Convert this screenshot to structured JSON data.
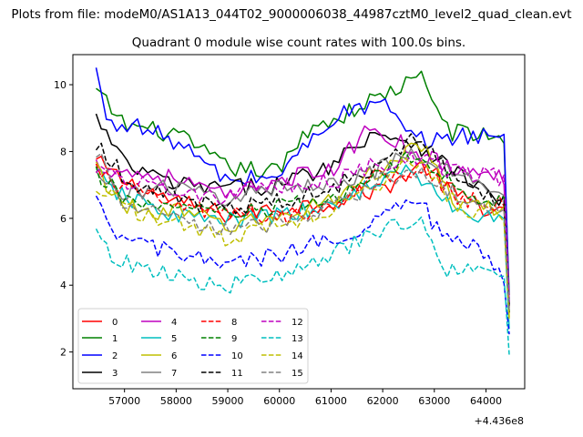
{
  "figure": {
    "suptitle": "Plots from file: modeM0/AS1A13_044T02_9000006038_44987cztM0_level2_quad_clean.evt",
    "title": "Quadrant 0 module wise count rates with 100.0s bins.",
    "offset_label": "+4.436e8"
  },
  "chart_data": {
    "type": "line",
    "x_offset": 443600000,
    "x_start": 56450,
    "x_step": 100,
    "xlim": [
      56000,
      64750
    ],
    "ylim": [
      0.9,
      10.9
    ],
    "xticks": [
      57000,
      58000,
      59000,
      60000,
      61000,
      62000,
      63000,
      64000
    ],
    "xtick_labels": [
      "57000",
      "58000",
      "59000",
      "60000",
      "61000",
      "62000",
      "63000",
      "64000"
    ],
    "yticks": [
      2,
      4,
      6,
      8,
      10
    ],
    "ytick_labels": [
      "2",
      "4",
      "6",
      "8",
      "10"
    ],
    "grid": false,
    "legend": {
      "placement": "lower-left",
      "ncol": 4
    },
    "series": [
      {
        "name": "0",
        "color": "#ff0000",
        "dash": "solid",
        "anchors": [
          [
            56450,
            7.7
          ],
          [
            57000,
            7.1
          ],
          [
            58000,
            6.5
          ],
          [
            59000,
            6.1
          ],
          [
            60000,
            6.3
          ],
          [
            61000,
            6.5
          ],
          [
            62000,
            6.9
          ],
          [
            62800,
            7.6
          ],
          [
            63500,
            6.6
          ],
          [
            64350,
            6.1
          ],
          [
            64480,
            2.5
          ]
        ]
      },
      {
        "name": "1",
        "color": "#008000",
        "dash": "solid",
        "anchors": [
          [
            56450,
            9.8
          ],
          [
            57000,
            8.8
          ],
          [
            58000,
            8.5
          ],
          [
            59000,
            7.5
          ],
          [
            60000,
            7.4
          ],
          [
            60600,
            8.8
          ],
          [
            61000,
            8.9
          ],
          [
            62000,
            9.7
          ],
          [
            62750,
            10.2
          ],
          [
            63300,
            8.6
          ],
          [
            64350,
            8.4
          ],
          [
            64480,
            2.3
          ]
        ]
      },
      {
        "name": "2",
        "color": "#0000ff",
        "dash": "solid",
        "anchors": [
          [
            56450,
            10.4
          ],
          [
            56700,
            8.7
          ],
          [
            57000,
            8.9
          ],
          [
            58000,
            8.3
          ],
          [
            59000,
            7.1
          ],
          [
            60000,
            7.3
          ],
          [
            61000,
            9.0
          ],
          [
            62000,
            9.5
          ],
          [
            62500,
            8.4
          ],
          [
            63100,
            8.3
          ],
          [
            63500,
            8.5
          ],
          [
            64350,
            8.5
          ],
          [
            64480,
            2.0
          ]
        ]
      },
      {
        "name": "3",
        "color": "#000000",
        "dash": "solid",
        "anchors": [
          [
            56450,
            9.0
          ],
          [
            57000,
            7.6
          ],
          [
            58000,
            7.0
          ],
          [
            59000,
            6.9
          ],
          [
            60000,
            7.0
          ],
          [
            61000,
            7.6
          ],
          [
            61800,
            8.6
          ],
          [
            62600,
            8.3
          ],
          [
            63500,
            7.3
          ],
          [
            64350,
            6.5
          ],
          [
            64480,
            2.2
          ]
        ]
      },
      {
        "name": "4",
        "color": "#bf00bf",
        "dash": "solid",
        "anchors": [
          [
            56450,
            7.6
          ],
          [
            57000,
            7.4
          ],
          [
            58000,
            7.2
          ],
          [
            59000,
            6.6
          ],
          [
            60000,
            7.2
          ],
          [
            61000,
            7.4
          ],
          [
            61800,
            8.8
          ],
          [
            62600,
            8.0
          ],
          [
            63500,
            7.4
          ],
          [
            64350,
            7.2
          ],
          [
            64480,
            2.3
          ]
        ]
      },
      {
        "name": "5",
        "color": "#00bfbf",
        "dash": "solid",
        "anchors": [
          [
            56450,
            7.3
          ],
          [
            57000,
            6.6
          ],
          [
            58000,
            6.1
          ],
          [
            59000,
            5.9
          ],
          [
            60000,
            6.1
          ],
          [
            61000,
            6.3
          ],
          [
            61800,
            7.1
          ],
          [
            62600,
            7.4
          ],
          [
            63500,
            6.1
          ],
          [
            64350,
            6.0
          ],
          [
            64480,
            1.7
          ]
        ]
      },
      {
        "name": "6",
        "color": "#bfbf00",
        "dash": "solid",
        "anchors": [
          [
            56450,
            7.5
          ],
          [
            57000,
            6.3
          ],
          [
            58000,
            6.2
          ],
          [
            59000,
            5.8
          ],
          [
            60000,
            6.0
          ],
          [
            61000,
            6.6
          ],
          [
            61800,
            7.3
          ],
          [
            62700,
            8.3
          ],
          [
            63400,
            6.4
          ],
          [
            64350,
            6.2
          ],
          [
            64480,
            2.1
          ]
        ]
      },
      {
        "name": "7",
        "color": "#808080",
        "dash": "solid",
        "anchors": [
          [
            56450,
            7.2
          ],
          [
            57000,
            6.8
          ],
          [
            58000,
            6.9
          ],
          [
            59000,
            6.6
          ],
          [
            60000,
            6.9
          ],
          [
            61000,
            7.1
          ],
          [
            61800,
            7.4
          ],
          [
            62600,
            7.9
          ],
          [
            63500,
            7.2
          ],
          [
            64350,
            6.9
          ],
          [
            64480,
            2.4
          ]
        ]
      },
      {
        "name": "8",
        "color": "#ff0000",
        "dash": "dashed",
        "anchors": [
          [
            56450,
            7.4
          ],
          [
            57000,
            6.9
          ],
          [
            58000,
            6.4
          ],
          [
            59000,
            6.1
          ],
          [
            60000,
            6.0
          ],
          [
            61000,
            6.4
          ],
          [
            61800,
            7.2
          ],
          [
            62700,
            7.5
          ],
          [
            63500,
            6.6
          ],
          [
            64350,
            6.4
          ],
          [
            64480,
            2.2
          ]
        ]
      },
      {
        "name": "9",
        "color": "#008000",
        "dash": "dashed",
        "anchors": [
          [
            56450,
            7.3
          ],
          [
            57000,
            6.6
          ],
          [
            58000,
            6.3
          ],
          [
            59000,
            6.1
          ],
          [
            60000,
            6.3
          ],
          [
            61000,
            6.6
          ],
          [
            61800,
            7.2
          ],
          [
            62700,
            7.9
          ],
          [
            63500,
            6.8
          ],
          [
            64350,
            6.5
          ],
          [
            64480,
            2.2
          ]
        ]
      },
      {
        "name": "10",
        "color": "#0000ff",
        "dash": "dashed",
        "anchors": [
          [
            56450,
            6.4
          ],
          [
            56800,
            5.5
          ],
          [
            57500,
            5.2
          ],
          [
            58000,
            4.9
          ],
          [
            59000,
            4.6
          ],
          [
            60000,
            4.9
          ],
          [
            61000,
            5.4
          ],
          [
            61800,
            5.9
          ],
          [
            62700,
            6.6
          ],
          [
            63200,
            5.3
          ],
          [
            64000,
            5.0
          ],
          [
            64350,
            4.3
          ],
          [
            64480,
            2.0
          ]
        ]
      },
      {
        "name": "11",
        "color": "#000000",
        "dash": "dashed",
        "anchors": [
          [
            56450,
            8.3
          ],
          [
            57000,
            7.2
          ],
          [
            58000,
            6.6
          ],
          [
            59000,
            6.3
          ],
          [
            60000,
            6.5
          ],
          [
            61000,
            6.9
          ],
          [
            61800,
            7.5
          ],
          [
            62600,
            8.5
          ],
          [
            63500,
            7.1
          ],
          [
            64350,
            6.6
          ],
          [
            64480,
            2.4
          ]
        ]
      },
      {
        "name": "12",
        "color": "#bf00bf",
        "dash": "dashed",
        "anchors": [
          [
            56450,
            7.6
          ],
          [
            57000,
            7.1
          ],
          [
            58000,
            6.9
          ],
          [
            59000,
            6.6
          ],
          [
            60000,
            6.9
          ],
          [
            61000,
            7.1
          ],
          [
            61800,
            7.6
          ],
          [
            62600,
            7.8
          ],
          [
            63500,
            7.4
          ],
          [
            64350,
            7.2
          ],
          [
            64480,
            2.4
          ]
        ]
      },
      {
        "name": "13",
        "color": "#00bfbf",
        "dash": "dashed",
        "anchors": [
          [
            56450,
            5.9
          ],
          [
            56700,
            4.8
          ],
          [
            57500,
            4.5
          ],
          [
            58000,
            4.2
          ],
          [
            59000,
            4.0
          ],
          [
            60000,
            4.2
          ],
          [
            61000,
            4.9
          ],
          [
            61800,
            5.5
          ],
          [
            62700,
            6.1
          ],
          [
            63200,
            4.5
          ],
          [
            64000,
            4.3
          ],
          [
            64350,
            4.0
          ],
          [
            64480,
            1.3
          ]
        ]
      },
      {
        "name": "14",
        "color": "#bfbf00",
        "dash": "dashed",
        "anchors": [
          [
            56450,
            7.0
          ],
          [
            57000,
            6.3
          ],
          [
            58000,
            5.9
          ],
          [
            59000,
            5.4
          ],
          [
            60000,
            5.8
          ],
          [
            61000,
            6.3
          ],
          [
            61800,
            6.9
          ],
          [
            62600,
            7.8
          ],
          [
            63500,
            6.3
          ],
          [
            64350,
            6.0
          ],
          [
            64480,
            2.1
          ]
        ]
      },
      {
        "name": "15",
        "color": "#808080",
        "dash": "dashed",
        "anchors": [
          [
            56450,
            8.0
          ],
          [
            57000,
            6.3
          ],
          [
            58000,
            6.0
          ],
          [
            59000,
            5.6
          ],
          [
            60000,
            5.9
          ],
          [
            61000,
            6.3
          ],
          [
            61800,
            7.0
          ],
          [
            62600,
            7.5
          ],
          [
            63500,
            6.6
          ],
          [
            64350,
            6.2
          ],
          [
            64480,
            2.3
          ]
        ]
      }
    ]
  }
}
